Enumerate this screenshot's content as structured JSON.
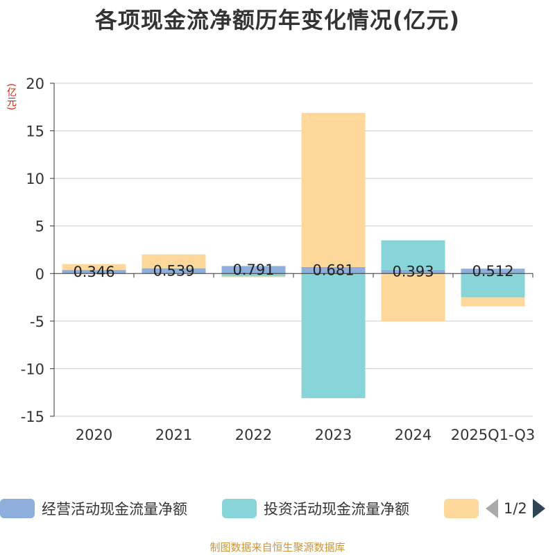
{
  "chart_data": {
    "type": "bar",
    "stacked": true,
    "title": "各项现金流净额历年变化情况(亿元)",
    "ylabel": "(亿元)",
    "ylim": [
      -15,
      20
    ],
    "yticks": [
      20,
      15,
      10,
      5,
      0,
      -5,
      -10,
      -15
    ],
    "categories": [
      "2020",
      "2021",
      "2022",
      "2023",
      "2024",
      "2025Q1-Q3"
    ],
    "series": [
      {
        "name": "经营活动现金流量净额",
        "color": "#8eaedb",
        "values": [
          0.346,
          0.539,
          0.791,
          0.681,
          0.393,
          0.512
        ],
        "labels": [
          "0.346",
          "0.539",
          "0.791",
          "0.681",
          "0.393",
          "0.512"
        ]
      },
      {
        "name": "投资活动现金流量净额",
        "color": "#88d5d9",
        "values": [
          0.05,
          0.02,
          -0.3,
          -13.1,
          3.1,
          -2.5
        ]
      },
      {
        "name": "",
        "color": "#fed89a",
        "values": [
          0.6,
          1.45,
          -0.1,
          16.2,
          -5.0,
          -0.95
        ]
      }
    ],
    "legend": {
      "position": "bottom",
      "page": "1/2"
    },
    "grid": true
  },
  "source": "制图数据来自恒生聚源数据库"
}
